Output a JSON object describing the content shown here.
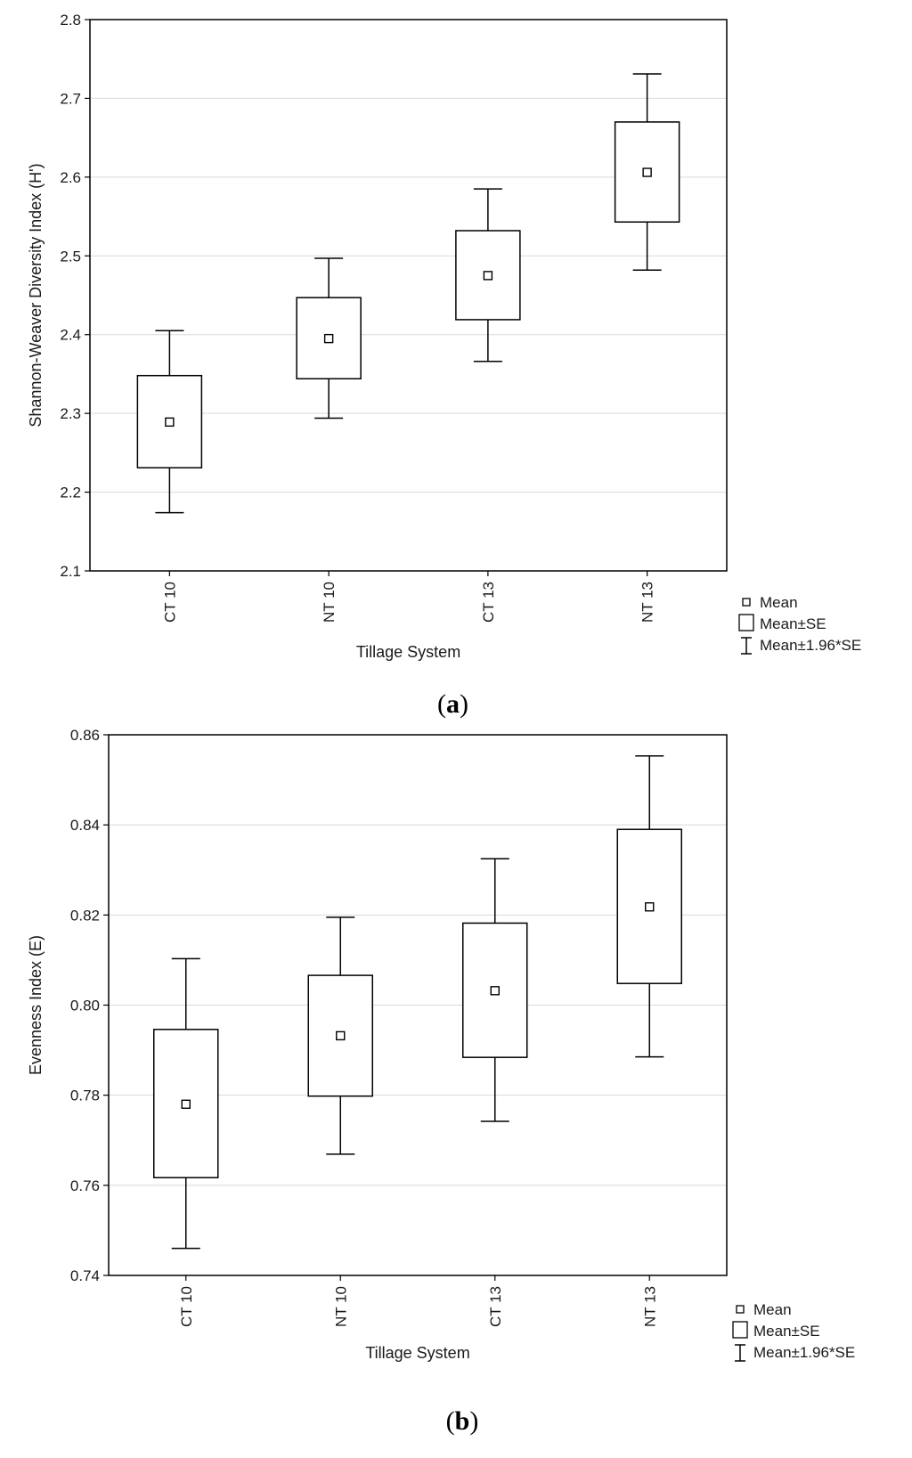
{
  "chart_data": [
    {
      "type": "box",
      "panel_label": "a",
      "title": "",
      "xlabel": "Tillage System",
      "ylabel": "Shannon-Weaver Diversity Index (H')",
      "ylim": [
        2.1,
        2.8
      ],
      "yticks": [
        "2.1",
        "2.2",
        "2.3",
        "2.4",
        "2.5",
        "2.6",
        "2.7",
        "2.8"
      ],
      "grid": true,
      "categories": [
        "CT 10",
        "NT 10",
        "CT 13",
        "NT 13"
      ],
      "series": [
        {
          "name": "Mean",
          "values": [
            2.289,
            2.395,
            2.475,
            2.606
          ]
        },
        {
          "name": "Mean-SE",
          "values": [
            2.231,
            2.344,
            2.419,
            2.543
          ]
        },
        {
          "name": "Mean+SE",
          "values": [
            2.348,
            2.447,
            2.532,
            2.67
          ]
        },
        {
          "name": "Mean-1.96*SE",
          "values": [
            2.174,
            2.294,
            2.366,
            2.482
          ]
        },
        {
          "name": "Mean+1.96*SE",
          "values": [
            2.405,
            2.497,
            2.585,
            2.731
          ]
        }
      ],
      "legend": {
        "position": "bottom-right",
        "items": [
          "Mean",
          "Mean±SE",
          "Mean±1.96*SE"
        ]
      }
    },
    {
      "type": "box",
      "panel_label": "b",
      "title": "",
      "xlabel": "Tillage System",
      "ylabel": "Evenness Index (E)",
      "ylim": [
        0.74,
        0.86
      ],
      "yticks": [
        "0.74",
        "0.76",
        "0.78",
        "0.80",
        "0.82",
        "0.84",
        "0.86"
      ],
      "grid": true,
      "categories": [
        "CT 10",
        "NT 10",
        "CT 13",
        "NT 13"
      ],
      "series": [
        {
          "name": "Mean",
          "values": [
            0.778,
            0.7932,
            0.8032,
            0.8218
          ]
        },
        {
          "name": "Mean-SE",
          "values": [
            0.7617,
            0.7798,
            0.7884,
            0.8048
          ]
        },
        {
          "name": "Mean+SE",
          "values": [
            0.7946,
            0.8066,
            0.8182,
            0.839
          ]
        },
        {
          "name": "Mean-1.96*SE",
          "values": [
            0.746,
            0.7669,
            0.7742,
            0.7885
          ]
        },
        {
          "name": "Mean+1.96*SE",
          "values": [
            0.8103,
            0.8195,
            0.8325,
            0.8553
          ]
        }
      ],
      "legend": {
        "position": "bottom-right",
        "items": [
          "Mean",
          "Mean±SE",
          "Mean±1.96*SE"
        ]
      }
    }
  ]
}
